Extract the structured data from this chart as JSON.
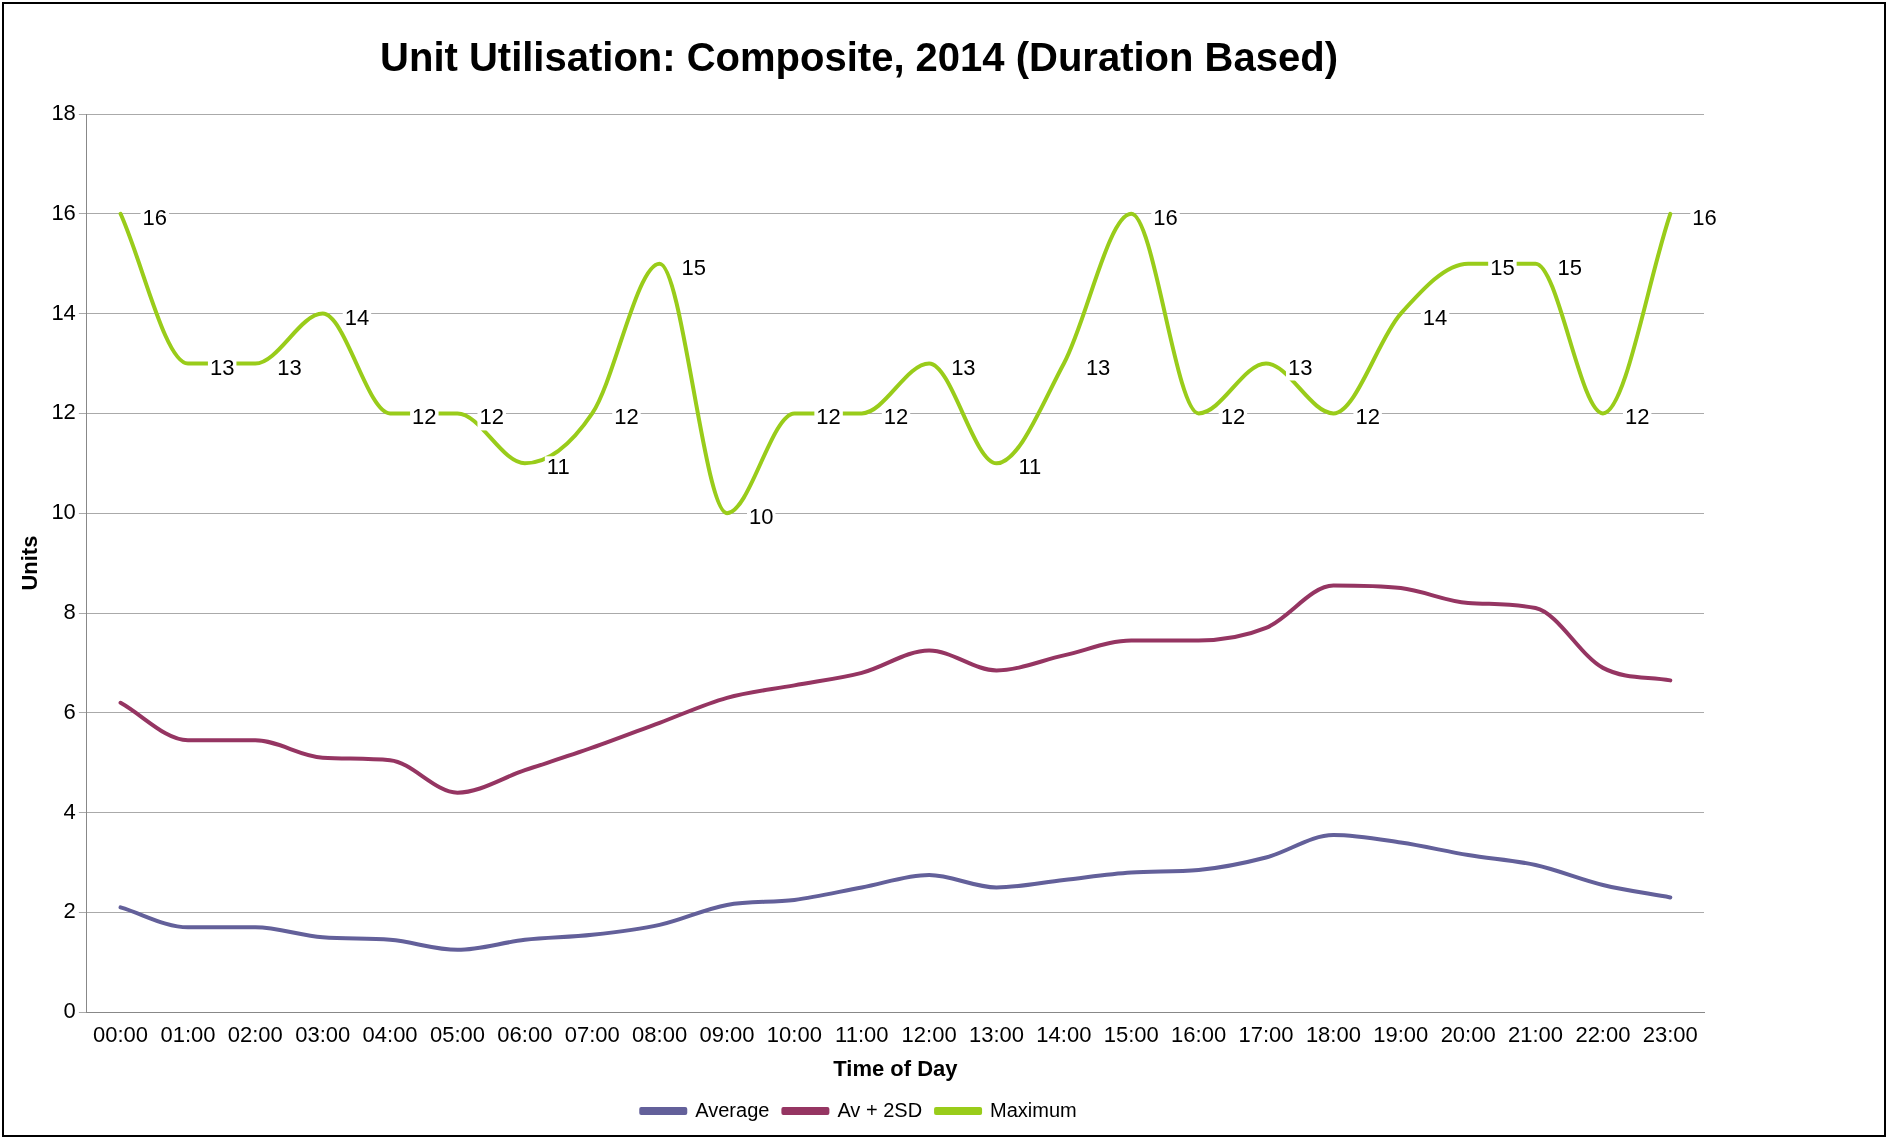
{
  "chart_data": {
    "type": "line",
    "title": "Unit Utilisation: Composite, 2014 (Duration Based)",
    "xlabel": "Time of Day",
    "ylabel": "Units",
    "categories": [
      "00:00",
      "01:00",
      "02:00",
      "03:00",
      "04:00",
      "05:00",
      "06:00",
      "07:00",
      "08:00",
      "09:00",
      "10:00",
      "11:00",
      "12:00",
      "13:00",
      "14:00",
      "15:00",
      "16:00",
      "17:00",
      "18:00",
      "19:00",
      "20:00",
      "21:00",
      "22:00",
      "23:00"
    ],
    "series": [
      {
        "name": "Average",
        "color": "#63609a",
        "values": [
          2.1,
          1.7,
          1.7,
          1.5,
          1.45,
          1.25,
          1.45,
          1.55,
          1.75,
          2.15,
          2.25,
          2.5,
          2.75,
          2.5,
          2.65,
          2.8,
          2.85,
          3.1,
          3.55,
          3.4,
          3.15,
          2.95,
          2.55,
          2.3
        ]
      },
      {
        "name": "Av + 2SD",
        "color": "#953562",
        "values": [
          6.2,
          5.45,
          5.45,
          5.1,
          5.05,
          4.4,
          4.85,
          5.3,
          5.8,
          6.3,
          6.55,
          6.8,
          7.25,
          6.85,
          7.15,
          7.45,
          7.45,
          7.7,
          8.55,
          8.5,
          8.2,
          8.1,
          6.9,
          6.65
        ]
      },
      {
        "name": "Maximum",
        "color": "#99cc1a",
        "values": [
          16,
          13,
          13,
          14,
          12,
          12,
          11,
          12,
          15,
          10,
          12,
          12,
          13,
          11,
          13,
          16,
          12,
          13,
          12,
          14,
          15,
          15,
          12,
          16
        ],
        "value_labels": [
          "16",
          "13",
          "13",
          "14",
          "12",
          "12",
          "11",
          "12",
          "15",
          "10",
          "12",
          "12",
          "13",
          "11",
          "13",
          "16",
          "12",
          "13",
          "12",
          "14",
          "15",
          "15",
          "12",
          "16"
        ]
      }
    ],
    "ylim": [
      0,
      18
    ],
    "yticks": [
      0,
      2,
      4,
      6,
      8,
      10,
      12,
      14,
      16,
      18
    ],
    "grid": "y",
    "legend": "bottom",
    "marker": "none",
    "line_style": "solid"
  }
}
